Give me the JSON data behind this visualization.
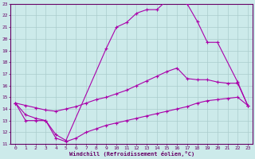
{
  "xlabel": "Windchill (Refroidissement éolien,°C)",
  "xlim": [
    -0.5,
    23.5
  ],
  "ylim": [
    11,
    23
  ],
  "xticks": [
    0,
    1,
    2,
    3,
    4,
    5,
    6,
    7,
    8,
    9,
    10,
    11,
    12,
    13,
    14,
    15,
    16,
    17,
    18,
    19,
    20,
    21,
    22,
    23
  ],
  "yticks": [
    11,
    12,
    13,
    14,
    15,
    16,
    17,
    18,
    19,
    20,
    21,
    22,
    23
  ],
  "bg_color": "#cceaea",
  "grid_color": "#aacccc",
  "line_color": "#aa00aa",
  "curve1_x": [
    0,
    1,
    2,
    3,
    4,
    5,
    9,
    10,
    11,
    12,
    13,
    14,
    15,
    16,
    17,
    18,
    19,
    20,
    22,
    23
  ],
  "curve1_y": [
    14.5,
    13.0,
    13.0,
    13.0,
    11.8,
    11.3,
    19.2,
    21.0,
    21.4,
    22.2,
    22.5,
    22.5,
    23.3,
    23.4,
    23.0,
    21.5,
    19.7,
    19.7,
    16.3,
    14.3
  ],
  "curve2_x": [
    0,
    1,
    2,
    3,
    4,
    5,
    6,
    7,
    8,
    9,
    10,
    11,
    12,
    13,
    14,
    15,
    16,
    17,
    18,
    19,
    20,
    21,
    22,
    23
  ],
  "curve2_y": [
    14.5,
    14.3,
    14.1,
    13.9,
    13.8,
    14.0,
    14.2,
    14.5,
    14.8,
    15.0,
    15.3,
    15.6,
    16.0,
    16.4,
    16.8,
    17.2,
    17.5,
    16.6,
    16.5,
    16.5,
    16.3,
    16.2,
    16.2,
    14.3
  ],
  "curve3_x": [
    0,
    1,
    2,
    3,
    4,
    5,
    6,
    7,
    8,
    9,
    10,
    11,
    12,
    13,
    14,
    15,
    16,
    17,
    18,
    19,
    20,
    21,
    22,
    23
  ],
  "curve3_y": [
    14.5,
    13.5,
    13.2,
    13.0,
    11.5,
    11.2,
    11.5,
    12.0,
    12.3,
    12.6,
    12.8,
    13.0,
    13.2,
    13.4,
    13.6,
    13.8,
    14.0,
    14.2,
    14.5,
    14.7,
    14.8,
    14.9,
    15.0,
    14.3
  ]
}
